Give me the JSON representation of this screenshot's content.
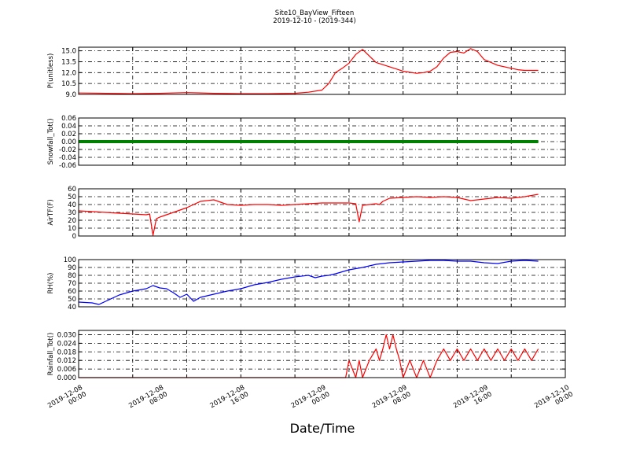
{
  "figure": {
    "title_line1": "Site10_BayView_Fifteen",
    "title_line2": "2019-12-10 - (2019-344)",
    "xlabel": "Date/Time",
    "x_tick_labels": [
      [
        "2019-12-08",
        "00:00"
      ],
      [
        "2019-12-08",
        "08:00"
      ],
      [
        "2019-12-08",
        "16:00"
      ],
      [
        "2019-12-09",
        "00:00"
      ],
      [
        "2019-12-09",
        "08:00"
      ],
      [
        "2019-12-09",
        "16:00"
      ],
      [
        "2019-12-10",
        "00:00"
      ]
    ]
  },
  "chart_data": [
    {
      "type": "line",
      "ylabel": "P(unitless)",
      "color": "#ff0000",
      "ylim": [
        9.0,
        15.5
      ],
      "yticks": [
        "9.0",
        "10.5",
        "12.0",
        "13.5",
        "15.0"
      ],
      "grid": true,
      "x_hours": [
        0,
        4,
        8,
        12,
        16,
        20,
        24,
        28,
        32,
        34,
        36,
        37,
        38,
        39,
        40,
        41,
        42,
        44,
        46,
        48,
        50,
        51,
        52,
        53,
        54,
        55,
        56,
        57,
        58,
        59,
        60,
        62,
        64,
        65,
        66,
        68
      ],
      "values": [
        9.2,
        9.15,
        9.1,
        9.15,
        9.25,
        9.15,
        9.1,
        9.1,
        9.15,
        9.3,
        9.6,
        10.5,
        12.0,
        12.6,
        13.3,
        14.5,
        15.2,
        13.4,
        12.8,
        12.2,
        11.9,
        12.0,
        12.2,
        12.8,
        14.0,
        14.8,
        14.9,
        14.7,
        15.3,
        14.9,
        13.8,
        13.0,
        12.6,
        12.4,
        12.3,
        12.3
      ]
    },
    {
      "type": "line",
      "ylabel": "Snowfall_Tot()",
      "color": "#008000",
      "ylim": [
        -0.06,
        0.06
      ],
      "yticks": [
        "-0.06",
        "-0.04",
        "-0.02",
        "0.00",
        "0.02",
        "0.04",
        "0.06"
      ],
      "grid": true,
      "x_hours": [
        0,
        68
      ],
      "values": [
        0.0,
        0.0
      ]
    },
    {
      "type": "line",
      "ylabel": "AirTF(F)",
      "color": "#ff0000",
      "ylim": [
        0,
        60
      ],
      "yticks": [
        "0",
        "10",
        "20",
        "30",
        "40",
        "50",
        "60"
      ],
      "grid": true,
      "x_hours": [
        0,
        2,
        4,
        6,
        8,
        10,
        10.5,
        11,
        11.5,
        12,
        14,
        16,
        18,
        20,
        21,
        22,
        24,
        26,
        28,
        30,
        32,
        34,
        36,
        38,
        40,
        41,
        41.5,
        42,
        43,
        44,
        44.5,
        45,
        46,
        48,
        50,
        52,
        54,
        56,
        57,
        58,
        60,
        62,
        64,
        66,
        68
      ],
      "values": [
        32,
        31,
        30,
        29,
        28,
        27,
        28,
        1,
        22,
        24,
        30,
        36,
        44,
        46,
        43,
        40,
        39,
        40,
        40,
        39,
        40,
        41,
        42,
        42,
        42,
        41,
        18,
        39,
        40,
        41,
        40,
        44,
        48,
        49,
        50,
        49,
        50,
        49,
        47,
        45,
        47,
        49,
        48,
        50,
        53
      ]
    },
    {
      "type": "line",
      "ylabel": "RH(%)",
      "color": "#0000ff",
      "ylim": [
        40,
        100
      ],
      "yticks": [
        "40",
        "50",
        "60",
        "70",
        "80",
        "90",
        "100"
      ],
      "grid": true,
      "x_hours": [
        0,
        2,
        3,
        4,
        6,
        8,
        10,
        11,
        12,
        13,
        14,
        15,
        16,
        17,
        18,
        20,
        22,
        24,
        26,
        28,
        30,
        32,
        34,
        35,
        36,
        37,
        38,
        40,
        42,
        44,
        46,
        48,
        50,
        52,
        54,
        56,
        58,
        60,
        62,
        64,
        66,
        68
      ],
      "values": [
        46,
        45,
        43,
        47,
        55,
        60,
        63,
        67,
        64,
        63,
        58,
        52,
        56,
        47,
        52,
        56,
        60,
        63,
        68,
        71,
        75,
        78,
        80,
        77,
        79,
        80,
        82,
        87,
        90,
        94,
        96,
        97,
        98,
        99,
        99,
        98,
        98,
        96,
        95,
        98,
        99,
        98
      ]
    },
    {
      "type": "line",
      "ylabel": "Rainfall_Tot()",
      "color": "#ff0000",
      "ylim": [
        0.0,
        0.033
      ],
      "yticks": [
        "0.000",
        "0.006",
        "0.012",
        "0.018",
        "0.024",
        "0.030"
      ],
      "grid": true,
      "x_hours": [
        0,
        38,
        39.5,
        40,
        41,
        41.5,
        42,
        43,
        44,
        44.5,
        45,
        45.5,
        46,
        46.5,
        47,
        47.5,
        48,
        49,
        50,
        51,
        52,
        53,
        54,
        55,
        56,
        57,
        58,
        59,
        60,
        61,
        62,
        63,
        64,
        65,
        66,
        67,
        68
      ],
      "values": [
        0.0,
        0.0,
        0.0,
        0.012,
        0.0,
        0.012,
        0.0,
        0.012,
        0.02,
        0.012,
        0.02,
        0.03,
        0.02,
        0.03,
        0.02,
        0.012,
        0.0,
        0.012,
        0.0,
        0.012,
        0.0,
        0.012,
        0.02,
        0.012,
        0.02,
        0.012,
        0.02,
        0.012,
        0.02,
        0.012,
        0.02,
        0.012,
        0.02,
        0.012,
        0.02,
        0.012,
        0.02
      ]
    }
  ]
}
